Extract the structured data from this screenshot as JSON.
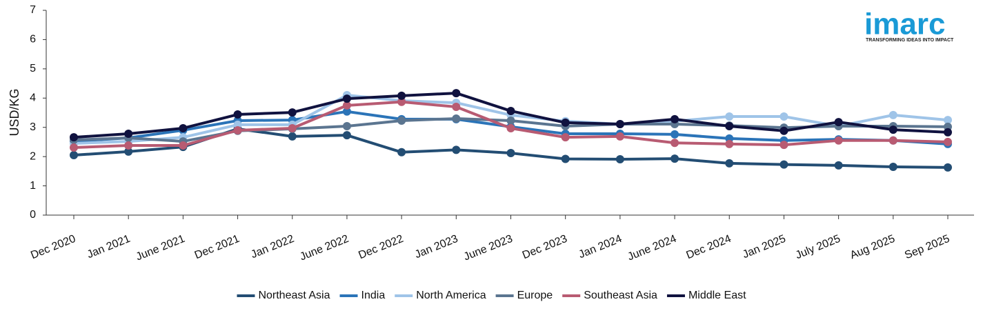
{
  "chart_data": {
    "type": "line",
    "y_label": "USD/KG",
    "categories": [
      "Dec 2020",
      "Jan 2021",
      "June 2021",
      "Dec 2021",
      "Jan 2022",
      "June 2022",
      "Dec 2022",
      "Jan 2023",
      "June 2023",
      "Dec 2023",
      "Jan 2024",
      "June 2024",
      "Dec 2024",
      "Jan 2025",
      "July 2025",
      "Aug 2025",
      "Sep 2025"
    ],
    "series": [
      {
        "name": "Northeast Asia",
        "color": "#234d73",
        "values": [
          2.05,
          2.17,
          2.33,
          2.95,
          2.69,
          2.73,
          2.15,
          2.23,
          2.12,
          1.92,
          1.91,
          1.93,
          1.77,
          1.73,
          1.7,
          1.65,
          1.63
        ]
      },
      {
        "name": "India",
        "color": "#2b74b8",
        "values": [
          2.52,
          2.64,
          2.9,
          3.23,
          3.25,
          3.54,
          3.28,
          3.28,
          3.02,
          2.78,
          2.78,
          2.76,
          2.62,
          2.55,
          2.59,
          2.55,
          2.43
        ]
      },
      {
        "name": "North America",
        "color": "#9fc4e8",
        "values": [
          2.45,
          2.52,
          2.66,
          3.09,
          3.09,
          4.1,
          3.91,
          3.84,
          3.42,
          3.21,
          3.11,
          3.21,
          3.37,
          3.37,
          3.04,
          3.42,
          3.25
        ]
      },
      {
        "name": "Europe",
        "color": "#5b7590",
        "values": [
          2.57,
          2.64,
          2.52,
          2.88,
          2.95,
          3.04,
          3.23,
          3.3,
          3.23,
          3.04,
          3.11,
          3.11,
          3.06,
          2.99,
          3.04,
          3.04,
          3.02
        ]
      },
      {
        "name": "Southeast Asia",
        "color": "#b85b72",
        "values": [
          2.31,
          2.38,
          2.38,
          2.9,
          2.97,
          3.75,
          3.87,
          3.7,
          2.97,
          2.66,
          2.69,
          2.47,
          2.43,
          2.4,
          2.55,
          2.55,
          2.5
        ]
      },
      {
        "name": "Middle East",
        "color": "#10123f",
        "values": [
          2.66,
          2.78,
          2.97,
          3.44,
          3.51,
          3.98,
          4.08,
          4.17,
          3.56,
          3.16,
          3.11,
          3.28,
          3.04,
          2.88,
          3.18,
          2.92,
          2.83
        ]
      }
    ],
    "ylim": [
      0,
      7
    ],
    "yticks": [
      0,
      1,
      2,
      3,
      4,
      5,
      6,
      7
    ],
    "grid": false,
    "legend": "bottom"
  },
  "logo": {
    "name": "imarc",
    "tagline": "TRANSFORMING IDEAS INTO IMPACT"
  }
}
